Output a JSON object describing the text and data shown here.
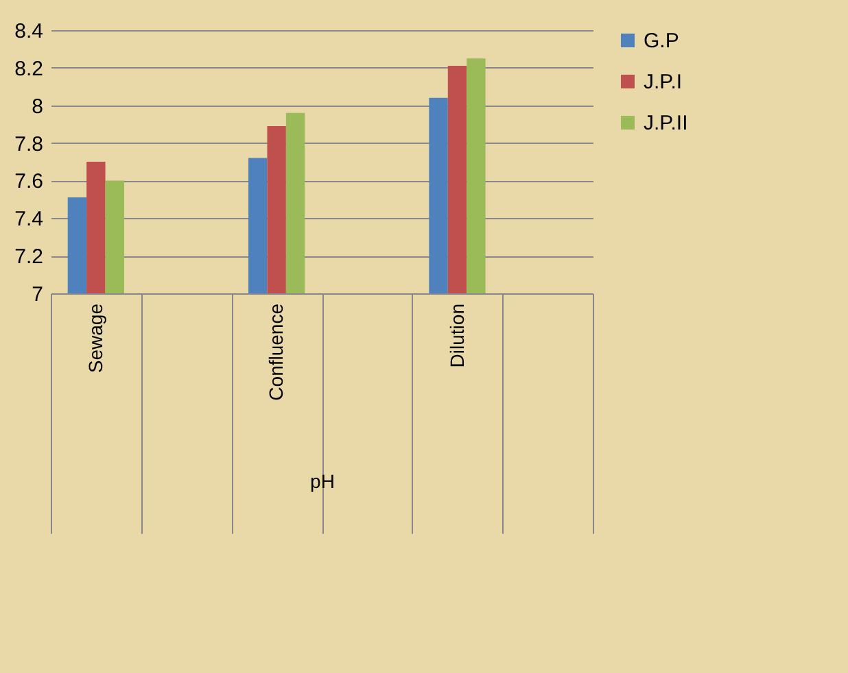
{
  "chart_data": {
    "type": "bar",
    "xlabel": "pH",
    "categories": [
      "Sewage",
      null,
      "Confluence",
      null,
      "Dilution",
      null
    ],
    "series": [
      {
        "name": "G.P",
        "color": "#4f81bd",
        "values": [
          7.51,
          null,
          7.72,
          null,
          8.04,
          null
        ]
      },
      {
        "name": "J.P.I",
        "color": "#c0504d",
        "values": [
          7.7,
          null,
          7.89,
          null,
          8.21,
          null
        ]
      },
      {
        "name": "J.P.II",
        "color": "#9bbb59",
        "values": [
          7.6,
          null,
          7.96,
          null,
          8.25,
          null
        ]
      }
    ],
    "ylim": [
      7,
      8.4
    ],
    "yticks": [
      7,
      7.2,
      7.4,
      7.6,
      7.8,
      8,
      8.2,
      8.4
    ],
    "grid": "y",
    "legend": "right"
  }
}
